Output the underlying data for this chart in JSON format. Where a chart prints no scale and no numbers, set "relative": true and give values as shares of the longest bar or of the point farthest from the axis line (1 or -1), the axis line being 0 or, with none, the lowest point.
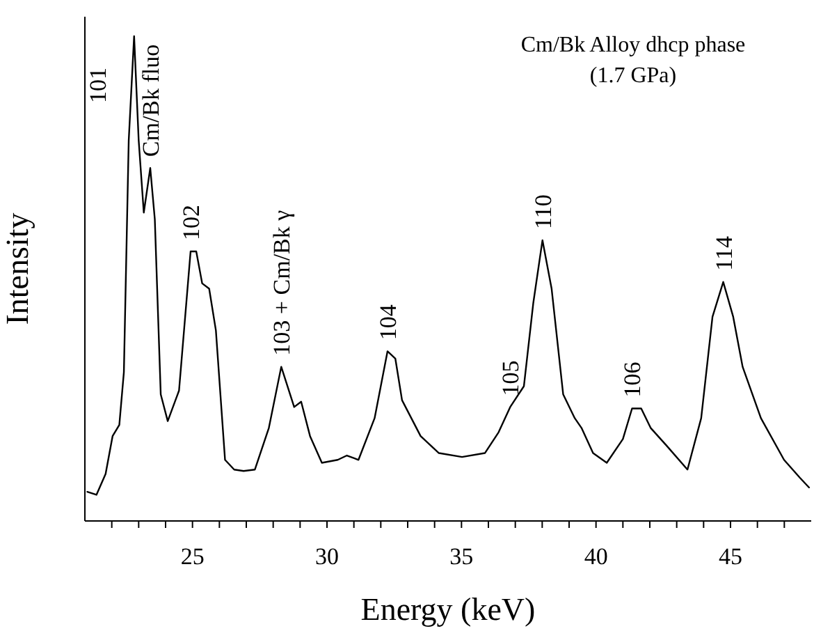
{
  "chart_data": {
    "type": "line",
    "title": "Cm/Bk Alloy dhcp phase",
    "subtitle": "(1.7 GPa)",
    "xlabel": "Energy (keV)",
    "ylabel": "Intensity",
    "relative": true,
    "xlim": [
      21,
      48
    ],
    "xticks": [
      {
        "value": 22,
        "label": null
      },
      {
        "value": 23,
        "label": null
      },
      {
        "value": 24,
        "label": null
      },
      25,
      {
        "value": 26,
        "label": null
      },
      {
        "value": 27,
        "label": null
      },
      {
        "value": 28,
        "label": null
      },
      {
        "value": 29,
        "label": null
      },
      30,
      {
        "value": 31,
        "label": null
      },
      {
        "value": 32,
        "label": null
      },
      {
        "value": 33,
        "label": null
      },
      {
        "value": 34,
        "label": null
      },
      35,
      {
        "value": 36,
        "label": null
      },
      {
        "value": 37,
        "label": null
      },
      {
        "value": 38,
        "label": null
      },
      {
        "value": 39,
        "label": null
      },
      40,
      {
        "value": 41,
        "label": null
      },
      {
        "value": 42,
        "label": null
      },
      {
        "value": 43,
        "label": null
      },
      {
        "value": 44,
        "label": null
      },
      45,
      {
        "value": 46,
        "label": null
      },
      {
        "value": 47,
        "label": null
      }
    ],
    "series": [
      {
        "color": "#000000",
        "x": [
          21.09,
          21.43,
          21.77,
          22.03,
          22.28,
          22.45,
          22.63,
          22.83,
          23.0,
          23.19,
          23.43,
          23.6,
          23.82,
          24.08,
          24.5,
          24.93,
          25.14,
          25.36,
          25.62,
          25.87,
          26.21,
          26.55,
          26.9,
          27.32,
          27.84,
          28.3,
          28.78,
          29.04,
          29.37,
          29.81,
          30.4,
          30.74,
          31.17,
          31.77,
          32.25,
          32.54,
          32.79,
          33.48,
          34.16,
          35.02,
          35.87,
          36.38,
          36.81,
          37.32,
          37.67,
          38.01,
          38.35,
          38.78,
          39.21,
          39.46,
          39.89,
          40.4,
          41.0,
          41.34,
          41.68,
          42.03,
          42.63,
          43.4,
          43.91,
          44.33,
          44.73,
          45.1,
          45.45,
          46.13,
          46.99,
          47.58,
          47.92
        ],
        "values": [
          0.06,
          0.054,
          0.097,
          0.175,
          0.198,
          0.307,
          0.785,
          1.0,
          0.785,
          0.636,
          0.728,
          0.622,
          0.261,
          0.206,
          0.269,
          0.556,
          0.556,
          0.49,
          0.479,
          0.393,
          0.126,
          0.106,
          0.103,
          0.106,
          0.192,
          0.318,
          0.235,
          0.246,
          0.175,
          0.12,
          0.126,
          0.135,
          0.126,
          0.212,
          0.35,
          0.335,
          0.249,
          0.175,
          0.14,
          0.132,
          0.14,
          0.183,
          0.235,
          0.278,
          0.45,
          0.579,
          0.479,
          0.261,
          0.212,
          0.192,
          0.14,
          0.12,
          0.169,
          0.232,
          0.232,
          0.192,
          0.155,
          0.106,
          0.212,
          0.421,
          0.493,
          0.421,
          0.318,
          0.212,
          0.126,
          0.089,
          0.069
        ]
      }
    ],
    "annotations": [
      "101",
      {
        "text": "Cm/Bk fluo",
        "x": 23.43,
        "y": 0.728
      },
      {
        "text": "102",
        "x": 24.93,
        "y": 0.556
      },
      {
        "text": "103 + Cm/Bk γ",
        "x": 28.3,
        "y": 0.318
      },
      {
        "text": "104",
        "x": 32.25,
        "y": 0.35
      },
      {
        "text": "105",
        "x": 36.81,
        "y": 0.235
      },
      {
        "text": "110",
        "x": 38.01,
        "y": 0.579
      },
      {
        "text": "106",
        "x": 41.34,
        "y": 0.232
      },
      {
        "text": "114",
        "x": 44.73,
        "y": 0.493
      }
    ]
  }
}
